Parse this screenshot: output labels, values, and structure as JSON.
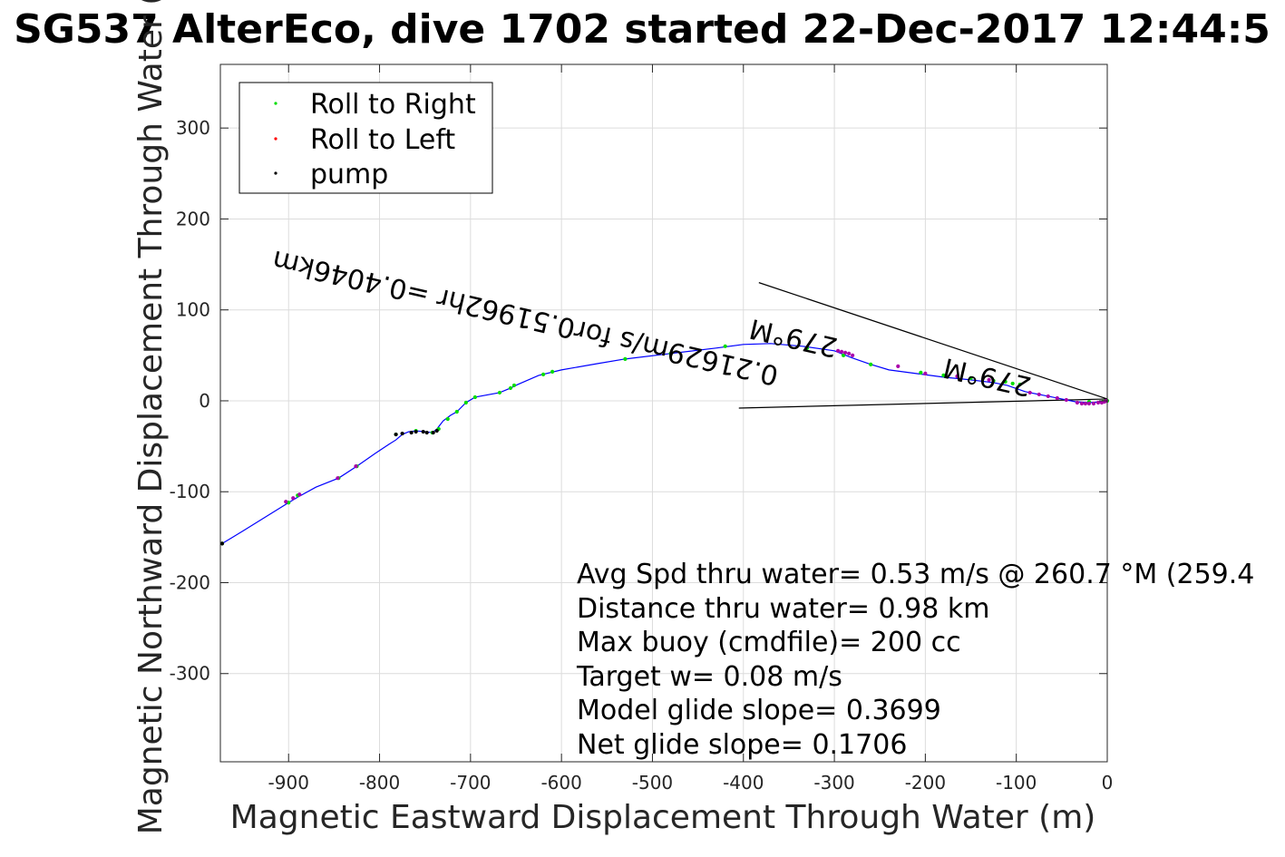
{
  "chart_data": {
    "type": "scatter",
    "title": "SG537 AlterEco, dive 1702 started 22-Dec-2017 12:44:5",
    "xlabel": "Magnetic Eastward Displacement Through Water (m)",
    "ylabel": "Magnetic Northward Displacement Through Water (",
    "xlim": [
      -975,
      0
    ],
    "ylim": [
      -397,
      370
    ],
    "xticks": [
      -900,
      -800,
      -700,
      -600,
      -500,
      -400,
      -300,
      -200,
      -100,
      0
    ],
    "yticks": [
      -300,
      -200,
      -100,
      0,
      100,
      200,
      300
    ],
    "grid": true,
    "legend_position": "top-left",
    "colors": {
      "track": "#0000ff",
      "roll_right": "#00dd00",
      "roll_left": "#ff0000",
      "pump": "#000000",
      "overlap": "#aa00aa",
      "grid": "#dcdcdc"
    },
    "track": {
      "name": "track",
      "x": [
        -973,
        -950,
        -900,
        -890,
        -870,
        -845,
        -825,
        -805,
        -790,
        -782,
        -775,
        -768,
        -760,
        -750,
        -742,
        -737,
        -730,
        -722,
        -715,
        -705,
        -695,
        -668,
        -656,
        -648,
        -625,
        -600,
        -560,
        -530,
        -480,
        -430,
        -400,
        -370,
        -335,
        -300,
        -280,
        -260,
        -240,
        -210,
        -180,
        -150,
        -125,
        -110,
        -90,
        -70,
        -50,
        -35,
        -20,
        -5,
        0
      ],
      "y": [
        -157,
        -143,
        -112,
        -106,
        -95,
        -85,
        -72,
        -58,
        -48,
        -43,
        -37,
        -34,
        -33,
        -34,
        -35,
        -31,
        -22,
        -16,
        -12,
        -2,
        4,
        9,
        14,
        18,
        28,
        34,
        41,
        46,
        52,
        58,
        62,
        63,
        60,
        55,
        47,
        40,
        34,
        30,
        26,
        23,
        20,
        17,
        10,
        6,
        2,
        -1,
        -2,
        -1,
        0
      ]
    },
    "series": [
      {
        "name": "Roll to Right",
        "x": [
          -973,
          -900,
          -890,
          -845,
          -825,
          -782,
          -760,
          -742,
          -735,
          -725,
          -715,
          -705,
          -695,
          -668,
          -656,
          -652,
          -620,
          -610,
          -530,
          -480,
          -420,
          -330,
          -290,
          -260,
          -205,
          -180,
          -150,
          -125,
          -112,
          -104,
          -96,
          -20,
          -5,
          0
        ],
        "y": [
          -157,
          -112,
          -104,
          -85,
          -72,
          -37,
          -33,
          -35,
          -31,
          -20,
          -12,
          -2,
          4,
          9,
          14,
          17,
          29,
          32,
          46,
          52,
          60,
          58,
          50,
          40,
          31,
          28,
          25,
          22,
          21,
          19,
          18,
          -1,
          -1,
          0
        ]
      },
      {
        "name": "Roll to Left",
        "x": [
          -903,
          -895,
          -888,
          -846,
          -826,
          -296,
          -292,
          -288,
          -284,
          -280,
          -230,
          -200,
          -165,
          -130,
          -85,
          -75,
          -65,
          -55,
          -45,
          -33,
          -28,
          -24,
          -20,
          -15,
          -10,
          -6,
          -3,
          -1
        ],
        "y": [
          -111,
          -107,
          -103,
          -85,
          -72,
          55,
          54,
          53,
          52,
          50,
          38,
          30,
          27,
          23,
          9,
          7,
          5,
          3,
          1,
          -2,
          -3,
          -3,
          -3,
          -3,
          -2,
          -2,
          -1,
          0
        ]
      },
      {
        "name": "pump",
        "x": [
          -973,
          -782,
          -775,
          -765,
          -760,
          -752,
          -748,
          -741,
          -737
        ],
        "y": [
          -157,
          -37,
          -36,
          -35,
          -34,
          -34,
          -35,
          -35,
          -33
        ]
      }
    ],
    "reference_lines": [
      {
        "x": [
          -383,
          0
        ],
        "y": [
          130,
          2
        ]
      },
      {
        "x": [
          -405,
          0
        ],
        "y": [
          -8,
          2
        ]
      }
    ],
    "rotated_annotations": [
      {
        "text": "0.21629m/s for0.51962hr =0.4046km",
        "anchor": [
          -360,
          37
        ],
        "angle_deg": 193
      },
      {
        "text": "279°M",
        "anchor": [
          -82,
          25
        ],
        "angle_deg": 193
      },
      {
        "text": "279°M",
        "anchor": [
          -295,
          68
        ],
        "angle_deg": 193
      }
    ],
    "annotations": [
      "Avg Spd thru water=  0.53 m/s @ 260.7 °M (259.4",
      "Distance thru water=  0.98 km",
      "Max buoy (cmdfile)= 200 cc",
      "Target w= 0.08 m/s",
      "Model glide slope= 0.3699",
      "Net glide slope= 0.1706"
    ],
    "legend": [
      "Roll to Right",
      "Roll to Left",
      "pump"
    ]
  }
}
